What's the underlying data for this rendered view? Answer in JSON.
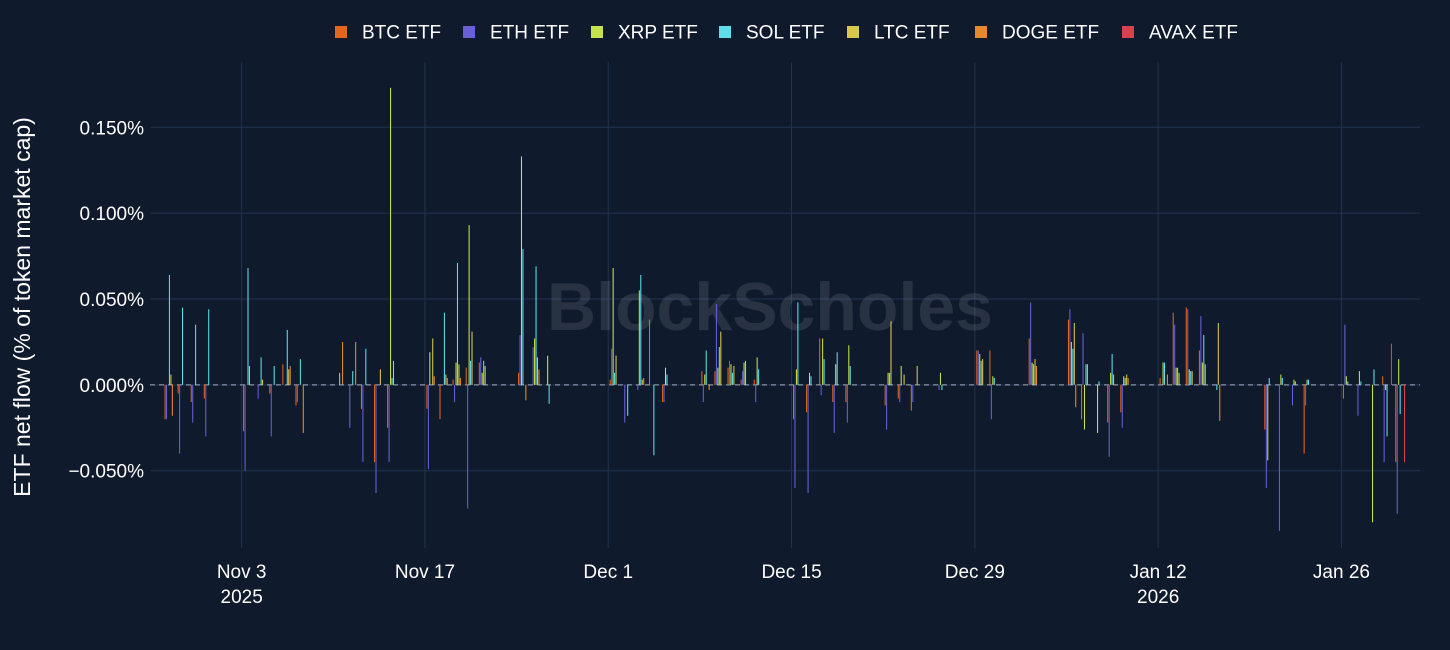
{
  "watermark": "BlockScholes",
  "chart_data": {
    "type": "bar",
    "title": "",
    "xlabel": "",
    "ylabel": "ETF net flow (% of token market cap)",
    "ylim": [
      -0.095,
      0.188
    ],
    "y_ticks": [
      -0.05,
      0.0,
      0.05,
      0.1,
      0.15
    ],
    "y_tick_labels": [
      "−0.050%",
      "0.000%",
      "0.050%",
      "0.100%",
      "0.150%"
    ],
    "x_ticks": [
      {
        "date": "2025-11-03",
        "line1": "Nov 3",
        "line2": "2025"
      },
      {
        "date": "2025-11-17",
        "line1": "Nov 17",
        "line2": ""
      },
      {
        "date": "2025-12-01",
        "line1": "Dec 1",
        "line2": ""
      },
      {
        "date": "2025-12-15",
        "line1": "Dec 15",
        "line2": ""
      },
      {
        "date": "2025-12-29",
        "line1": "Dec 29",
        "line2": ""
      },
      {
        "date": "2026-01-12",
        "line1": "Jan 12",
        "line2": "2026"
      },
      {
        "date": "2026-01-26",
        "line1": "Jan 26",
        "line2": ""
      }
    ],
    "x_range": [
      "2025-10-27",
      "2026-02-01"
    ],
    "grid": true,
    "legend_position": "top-center",
    "dates": [
      "2025-10-28",
      "2025-10-29",
      "2025-10-30",
      "2025-10-31",
      "2025-11-03",
      "2025-11-04",
      "2025-11-05",
      "2025-11-06",
      "2025-11-07",
      "2025-11-10",
      "2025-11-11",
      "2025-11-12",
      "2025-11-13",
      "2025-11-14",
      "2025-11-17",
      "2025-11-18",
      "2025-11-19",
      "2025-11-20",
      "2025-11-21",
      "2025-11-24",
      "2025-11-25",
      "2025-11-26",
      "2025-11-28",
      "2025-12-01",
      "2025-12-02",
      "2025-12-03",
      "2025-12-04",
      "2025-12-05",
      "2025-12-08",
      "2025-12-09",
      "2025-12-10",
      "2025-12-11",
      "2025-12-12",
      "2025-12-15",
      "2025-12-16",
      "2025-12-17",
      "2025-12-18",
      "2025-12-19",
      "2025-12-22",
      "2025-12-23",
      "2025-12-24",
      "2025-12-26",
      "2025-12-29",
      "2025-12-30",
      "2025-12-31",
      "2026-01-02",
      "2026-01-05",
      "2026-01-06",
      "2026-01-07",
      "2026-01-08",
      "2026-01-09",
      "2026-01-12",
      "2026-01-13",
      "2026-01-14",
      "2026-01-15",
      "2026-01-16",
      "2026-01-20",
      "2026-01-21",
      "2026-01-22",
      "2026-01-23",
      "2026-01-26",
      "2026-01-27",
      "2026-01-28",
      "2026-01-29",
      "2026-01-30"
    ],
    "series": [
      {
        "name": "BTC ETF",
        "color": "#e4661c",
        "values": [
          -0.02,
          -0.005,
          -0.01,
          -0.008,
          -0.027,
          0,
          -0.005,
          0.012,
          -0.012,
          0,
          0,
          -0.014,
          -0.045,
          -0.025,
          -0.014,
          -0.02,
          0.003,
          0.01,
          0.013,
          0.007,
          0,
          0,
          0,
          0.003,
          0,
          0,
          0.038,
          -0.01,
          0.008,
          0.008,
          0.01,
          0.003,
          0.003,
          -0.02,
          -0.016,
          0.027,
          -0.01,
          -0.01,
          -0.012,
          -0.008,
          -0.015,
          0,
          0.02,
          0.02,
          0,
          0.027,
          0.038,
          -0.02,
          0,
          -0.022,
          -0.016,
          0.004,
          0.042,
          0.045,
          0.02,
          0,
          -0.026,
          0,
          0,
          -0.04,
          -0.008,
          0,
          0,
          0.005,
          -0.045
        ]
      },
      {
        "name": "ETH ETF",
        "color": "#6a5fd4",
        "values": [
          -0.02,
          -0.04,
          -0.022,
          -0.03,
          -0.05,
          -0.008,
          -0.03,
          0,
          -0.01,
          0,
          -0.025,
          -0.045,
          -0.063,
          -0.045,
          -0.049,
          0,
          -0.01,
          -0.072,
          0.016,
          0.029,
          0.022,
          0,
          0,
          0.021,
          -0.022,
          -0.003,
          0,
          -0.01,
          -0.01,
          0.047,
          0.014,
          0.008,
          -0.01,
          -0.06,
          -0.063,
          -0.006,
          -0.028,
          -0.022,
          -0.026,
          -0.01,
          -0.01,
          -0.003,
          0.02,
          -0.02,
          0,
          0.048,
          0.044,
          0.03,
          0,
          -0.042,
          -0.025,
          0,
          0.035,
          0.044,
          0.04,
          0,
          -0.06,
          -0.085,
          -0.012,
          -0.012,
          0.035,
          -0.018,
          0,
          -0.045,
          -0.075
        ]
      },
      {
        "name": "XRP ETF",
        "color": "#c5e34a",
        "values": [
          0,
          0,
          0,
          0,
          0,
          0,
          0,
          0,
          0,
          0,
          0,
          0,
          0,
          0.173,
          0.019,
          0,
          0.013,
          0.093,
          0.007,
          0.133,
          0.027,
          0.017,
          0,
          0.068,
          0,
          0.055,
          0,
          0.01,
          0.006,
          0.01,
          0.012,
          0.013,
          0.016,
          0.009,
          0.007,
          0.027,
          0.012,
          0.023,
          0.007,
          0.011,
          0,
          0.007,
          0.018,
          0.005,
          0,
          0.013,
          0.025,
          -0.026,
          -0.028,
          0.007,
          0.005,
          0.013,
          0.01,
          0.009,
          0.013,
          0,
          -0.044,
          0.006,
          0.003,
          0.003,
          0.005,
          0.008,
          -0.08,
          -0.003,
          0.015
        ]
      },
      {
        "name": "SOL ETF",
        "color": "#5fdde8",
        "values": [
          0.064,
          0.045,
          0.035,
          0.044,
          0.068,
          0.016,
          0.011,
          0.032,
          0.015,
          0.007,
          0.008,
          0.021,
          0,
          0.004,
          0,
          0.042,
          0.071,
          0.014,
          0.014,
          0.079,
          0.069,
          -0.011,
          0,
          0.007,
          -0.018,
          0.064,
          -0.041,
          0.006,
          0.02,
          0.022,
          0.007,
          0.014,
          0.009,
          0.048,
          0.005,
          0.015,
          0.019,
          0.011,
          0.007,
          0,
          0,
          -0.003,
          0.014,
          0.004,
          0,
          0.012,
          0.021,
          0.012,
          0.002,
          0.018,
          0.004,
          0.013,
          0.01,
          0.008,
          0.029,
          -0.003,
          0.004,
          0.004,
          0.002,
          0.003,
          0.002,
          0.002,
          0.009,
          -0.03,
          -0.017
        ]
      },
      {
        "name": "LTC ETF",
        "color": "#d9c94a",
        "values": [
          0.006,
          0,
          0,
          0,
          0.011,
          0.003,
          0,
          0.009,
          0,
          0,
          0,
          0,
          0.009,
          0.014,
          0.027,
          0.006,
          0.012,
          0.031,
          0.011,
          0.0,
          0.016,
          0,
          0,
          0.017,
          0,
          0.003,
          0,
          0,
          0,
          0.031,
          0.011,
          0,
          0,
          0,
          0,
          0,
          0,
          0,
          0.037,
          0.006,
          0.011,
          0,
          0.015,
          0,
          0,
          0.015,
          0.036,
          0.012,
          0,
          0.006,
          0.006,
          0,
          0.007,
          0.008,
          0.012,
          0.036,
          0,
          0,
          0,
          0,
          0,
          0,
          0,
          0,
          0
        ]
      },
      {
        "name": "DOGE ETF",
        "color": "#e88a2a",
        "values": [
          -0.018,
          0,
          0,
          0,
          0,
          0,
          0,
          0.011,
          -0.028,
          0.025,
          0.025,
          0,
          0,
          0,
          0.005,
          0.004,
          0.004,
          0,
          0,
          -0.009,
          0.009,
          0,
          0,
          0,
          0,
          0.004,
          0,
          0,
          -0.003,
          0,
          0,
          0,
          0,
          0,
          0,
          0,
          0,
          0,
          0,
          0,
          0,
          0,
          0,
          0,
          0,
          0.011,
          -0.013,
          0,
          0,
          0,
          0.004,
          0.006,
          0,
          0,
          0,
          -0.021,
          0,
          0,
          0,
          0,
          0,
          0,
          0,
          0,
          0
        ]
      },
      {
        "name": "AVAX ETF",
        "color": "#d9434f",
        "values": [
          0,
          0,
          0,
          0,
          0,
          0,
          0,
          0,
          0,
          0,
          0,
          0,
          0,
          0,
          0,
          0,
          0,
          0,
          0,
          0,
          0,
          0,
          0,
          0,
          0,
          0,
          0,
          0,
          0,
          0,
          0,
          0,
          0,
          0,
          0,
          0,
          0,
          0,
          0,
          0,
          0,
          0,
          0,
          0,
          0,
          0,
          0,
          0,
          0,
          0,
          0,
          0,
          0,
          0,
          0,
          0,
          0,
          0,
          0,
          0,
          0,
          0,
          0,
          0.024,
          -0.045
        ]
      }
    ]
  }
}
